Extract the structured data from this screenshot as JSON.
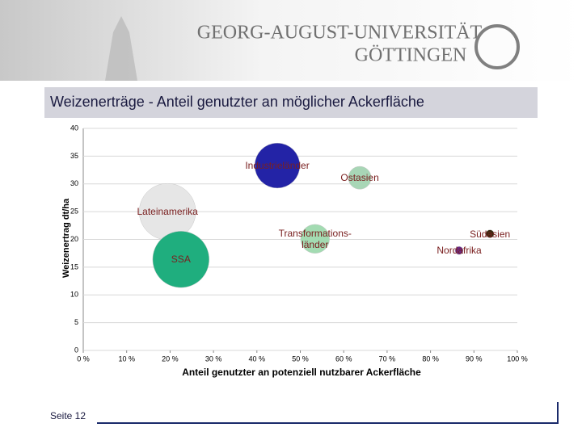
{
  "header": {
    "line1": "GEORG-AUGUST-UNIVERSITÄT",
    "line2": "GÖTTINGEN"
  },
  "chart_data": {
    "type": "bubble",
    "title": "Weizenerträge - Anteil genutzter an möglicher Ackerfläche",
    "x_label": "Anteil genutzter an potenziell nutzbarer Ackerfläche",
    "y_label": "Weizenertrag dt/ha",
    "xlim": [
      0,
      100
    ],
    "ylim": [
      0,
      40
    ],
    "xticks": [
      {
        "value": 0,
        "label": "0 %"
      },
      {
        "value": 10,
        "label": "10 %"
      },
      {
        "value": 20,
        "label": "20 %"
      },
      {
        "value": 30,
        "label": "30 %"
      },
      {
        "value": 40,
        "label": "40 %"
      },
      {
        "value": 50,
        "label": "50 %"
      },
      {
        "value": 60,
        "label": "60 %"
      },
      {
        "value": 70,
        "label": "70 %"
      },
      {
        "value": 80,
        "label": "80 %"
      },
      {
        "value": 90,
        "label": "90 %"
      },
      {
        "value": 100,
        "label": "100 %"
      }
    ],
    "yticks": [
      0,
      5,
      10,
      15,
      20,
      25,
      30,
      35,
      40
    ],
    "grid": true,
    "series": [
      {
        "name": "Lateinamerika",
        "color": "#e6e6e6",
        "x": [
          19.4
        ],
        "values": [
          25.0
        ],
        "sizes": [
          122
        ]
      },
      {
        "name": "SSA",
        "color": "#1fae7e",
        "x": [
          22.5
        ],
        "values": [
          16.4
        ],
        "sizes": [
          122
        ]
      },
      {
        "name": "Industrieländer",
        "color": "#2323a6",
        "x": [
          44.7
        ],
        "values": [
          33.3
        ],
        "sizes": [
          78
        ]
      },
      {
        "name": "Transformations-\nländer",
        "color": "#a3dbb2",
        "x": [
          53.4
        ],
        "values": [
          20.1
        ],
        "sizes": [
          32
        ]
      },
      {
        "name": "Ostasien",
        "color": "#a8d6b6",
        "x": [
          63.7
        ],
        "values": [
          31.1
        ],
        "sizes": [
          20
        ]
      },
      {
        "name": "Nordafrika",
        "color": "#6a2a8a",
        "x": [
          86.6
        ],
        "values": [
          18.0
        ],
        "sizes": [
          2.5
        ]
      },
      {
        "name": "Südasien",
        "color": "#3a2a10",
        "x": [
          93.7
        ],
        "values": [
          21.0
        ],
        "sizes": [
          2.5
        ]
      }
    ]
  },
  "footer": {
    "page": "Seite 12"
  }
}
